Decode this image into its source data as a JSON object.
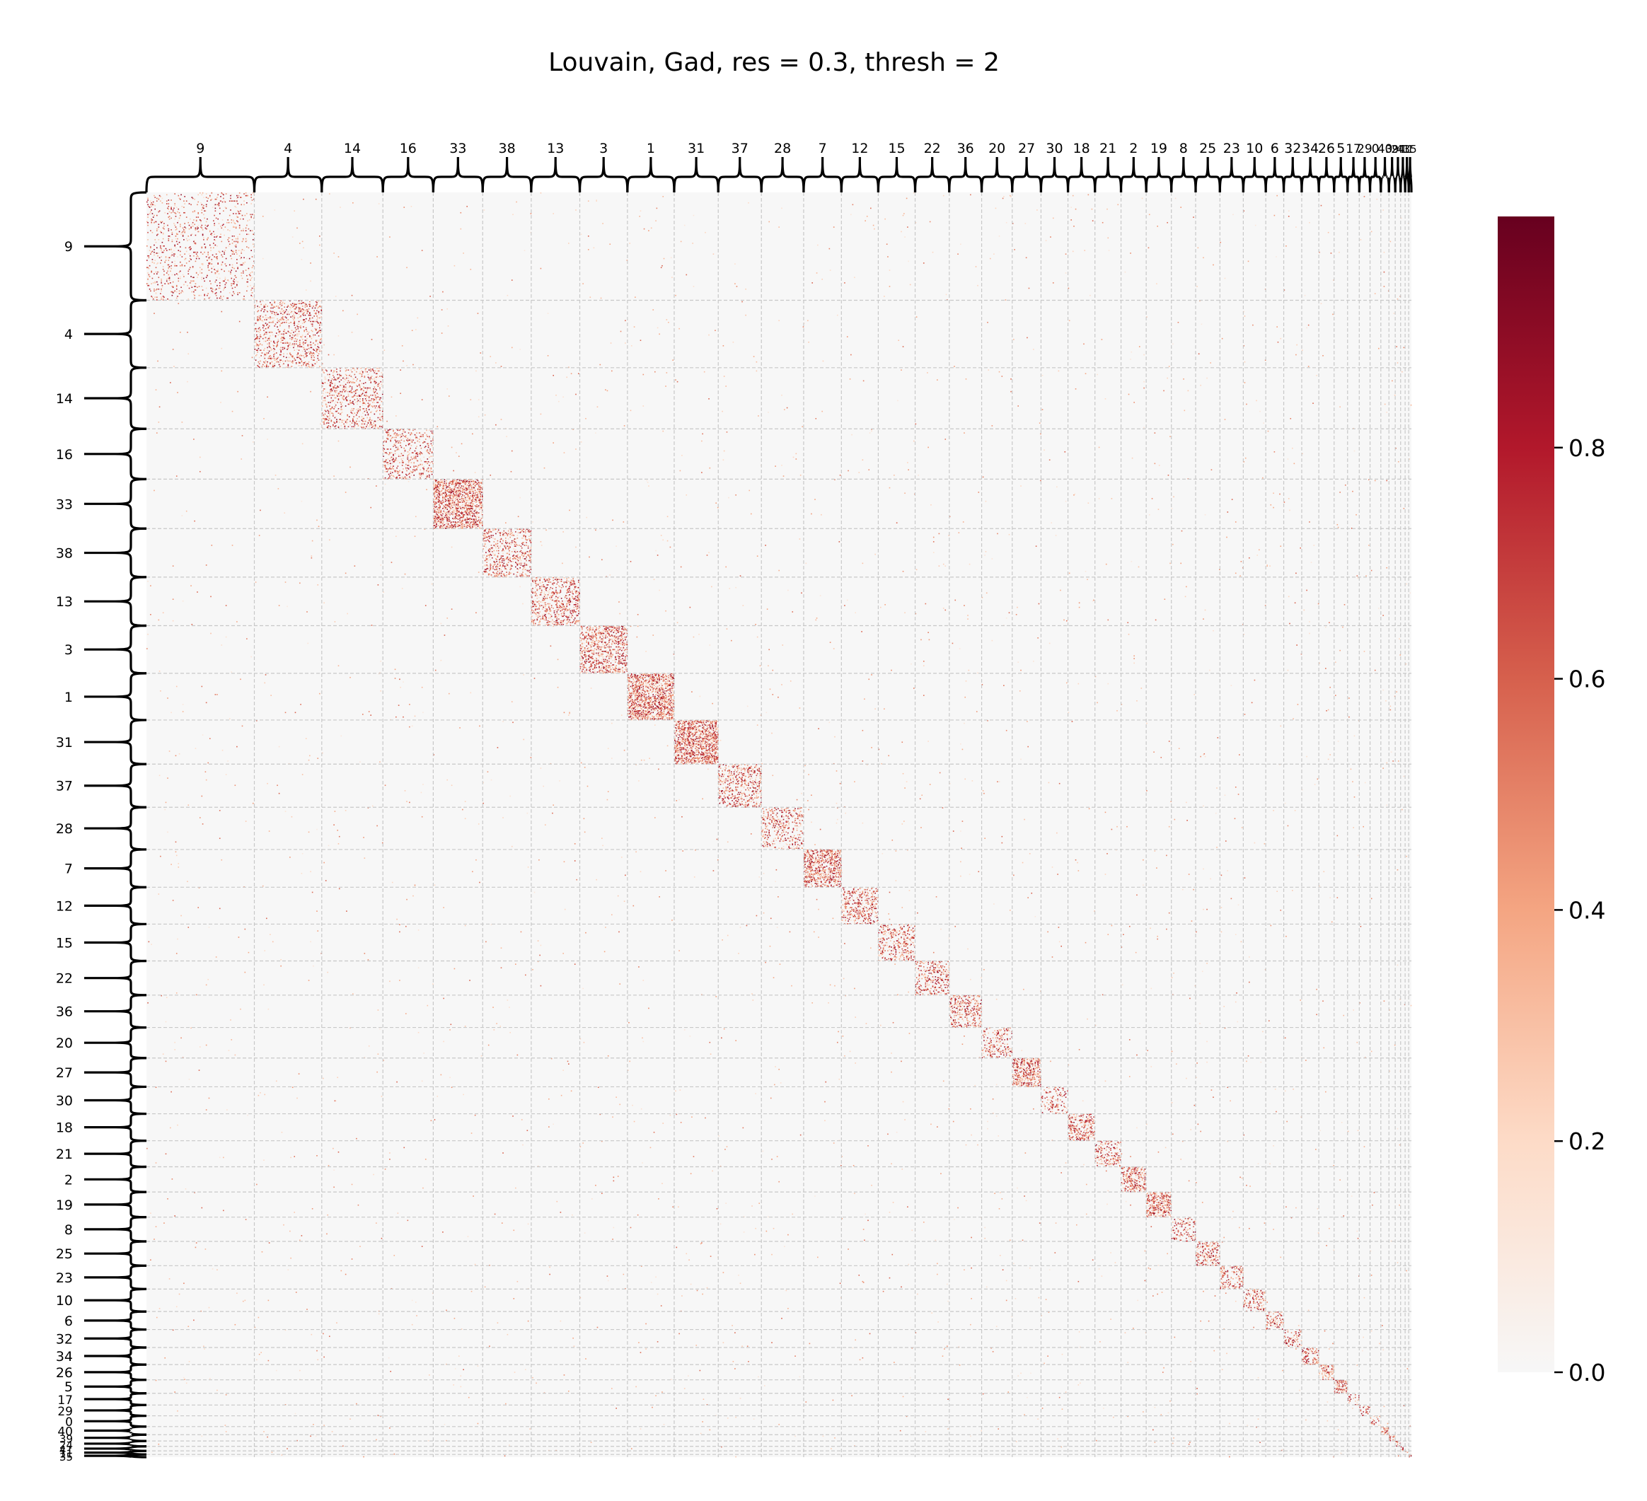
{
  "chart_data": {
    "type": "heatmap",
    "title": "Louvain, Gad, res = 0.3, thresh = 2",
    "xlabel": "",
    "ylabel": "",
    "clusters": [
      {
        "label": "9",
        "size": 120
      },
      {
        "label": "4",
        "size": 75
      },
      {
        "label": "14",
        "size": 68
      },
      {
        "label": "16",
        "size": 56
      },
      {
        "label": "33",
        "size": 55
      },
      {
        "label": "38",
        "size": 54
      },
      {
        "label": "13",
        "size": 54
      },
      {
        "label": "3",
        "size": 53
      },
      {
        "label": "1",
        "size": 52
      },
      {
        "label": "31",
        "size": 49
      },
      {
        "label": "37",
        "size": 48
      },
      {
        "label": "28",
        "size": 47
      },
      {
        "label": "7",
        "size": 42
      },
      {
        "label": "12",
        "size": 41
      },
      {
        "label": "15",
        "size": 41
      },
      {
        "label": "22",
        "size": 38
      },
      {
        "label": "36",
        "size": 36
      },
      {
        "label": "20",
        "size": 34
      },
      {
        "label": "27",
        "size": 32
      },
      {
        "label": "30",
        "size": 30
      },
      {
        "label": "18",
        "size": 30
      },
      {
        "label": "21",
        "size": 29
      },
      {
        "label": "2",
        "size": 28
      },
      {
        "label": "19",
        "size": 28
      },
      {
        "label": "8",
        "size": 27
      },
      {
        "label": "25",
        "size": 27
      },
      {
        "label": "23",
        "size": 26
      },
      {
        "label": "10",
        "size": 25
      },
      {
        "label": "6",
        "size": 20
      },
      {
        "label": "32",
        "size": 20
      },
      {
        "label": "34",
        "size": 19
      },
      {
        "label": "26",
        "size": 17
      },
      {
        "label": "5",
        "size": 15
      },
      {
        "label": "17",
        "size": 13
      },
      {
        "label": "29",
        "size": 12
      },
      {
        "label": "0",
        "size": 12
      },
      {
        "label": "40",
        "size": 9
      },
      {
        "label": "39",
        "size": 7
      },
      {
        "label": "24",
        "size": 6
      },
      {
        "label": "41",
        "size": 5
      },
      {
        "label": "11",
        "size": 4
      },
      {
        "label": "35",
        "size": 3
      }
    ],
    "value_range": [
      0.0,
      1.0
    ],
    "colorbar": {
      "ticks": [
        0.0,
        0.2,
        0.4,
        0.6,
        0.8
      ],
      "tick_labels": [
        "0.0",
        "0.2",
        "0.4",
        "0.6",
        "0.8"
      ],
      "colormap": "RdBu_r (upper half)",
      "colors": [
        "#f7f7f7",
        "#fddbc7",
        "#f4a582",
        "#d6604d",
        "#b2182b",
        "#67001f"
      ]
    },
    "within_cluster_density": {
      "9": 0.06,
      "4": 0.14,
      "14": 0.14,
      "16": 0.14,
      "33": 0.35,
      "38": 0.16,
      "13": 0.2,
      "3": 0.25,
      "1": 0.35,
      "31": 0.4,
      "37": 0.2,
      "28": 0.15,
      "7": 0.3,
      "12": 0.2,
      "15": 0.18,
      "22": 0.2,
      "36": 0.2,
      "20": 0.15,
      "27": 0.3,
      "30": 0.15,
      "18": 0.25,
      "21": 0.2,
      "2": 0.25,
      "19": 0.35,
      "8": 0.15,
      "25": 0.2,
      "23": 0.2,
      "10": 0.2,
      "6": 0.15,
      "32": 0.15,
      "34": 0.25,
      "26": 0.25,
      "5": 0.3,
      "17": 0.2,
      "29": 0.2,
      "0": 0.2,
      "40": 0.25,
      "39": 0.3,
      "24": 0.3,
      "41": 0.3,
      "11": 0.3,
      "35": 0.4
    },
    "background_value": 0.0,
    "grid": true,
    "grid_style": "dashed, light gray, at cluster boundaries",
    "legend": "colorbar right",
    "annotations": "curly brackets above columns and left of rows marking clusters"
  }
}
